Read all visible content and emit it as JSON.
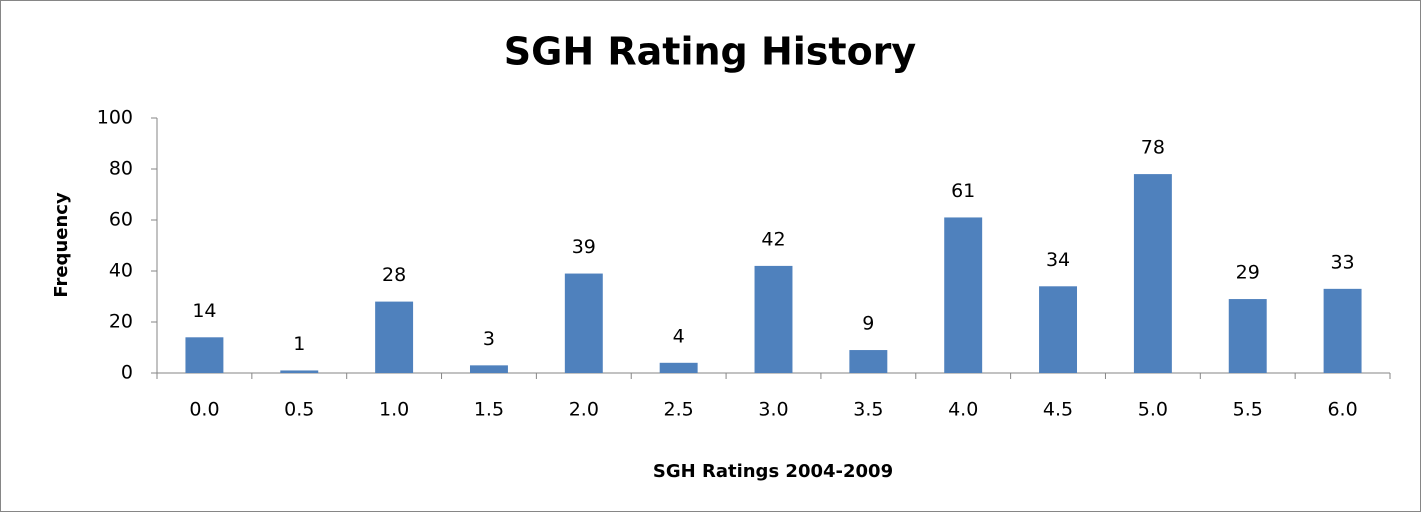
{
  "chart_data": {
    "type": "bar",
    "title": "SGH Rating History",
    "x_label": "SGH Ratings 2004-2009",
    "y_label": "Frequency",
    "categories": [
      "0.0",
      "0.5",
      "1.0",
      "1.5",
      "2.0",
      "2.5",
      "3.0",
      "3.5",
      "4.0",
      "4.5",
      "5.0",
      "5.5",
      "6.0"
    ],
    "values": [
      14,
      1,
      28,
      3,
      39,
      4,
      42,
      9,
      61,
      34,
      78,
      29,
      33
    ],
    "color": "#4f81bd",
    "ylim": [
      0,
      100
    ],
    "yticks": [
      0,
      20,
      40,
      60,
      80,
      100
    ],
    "grid": false
  }
}
